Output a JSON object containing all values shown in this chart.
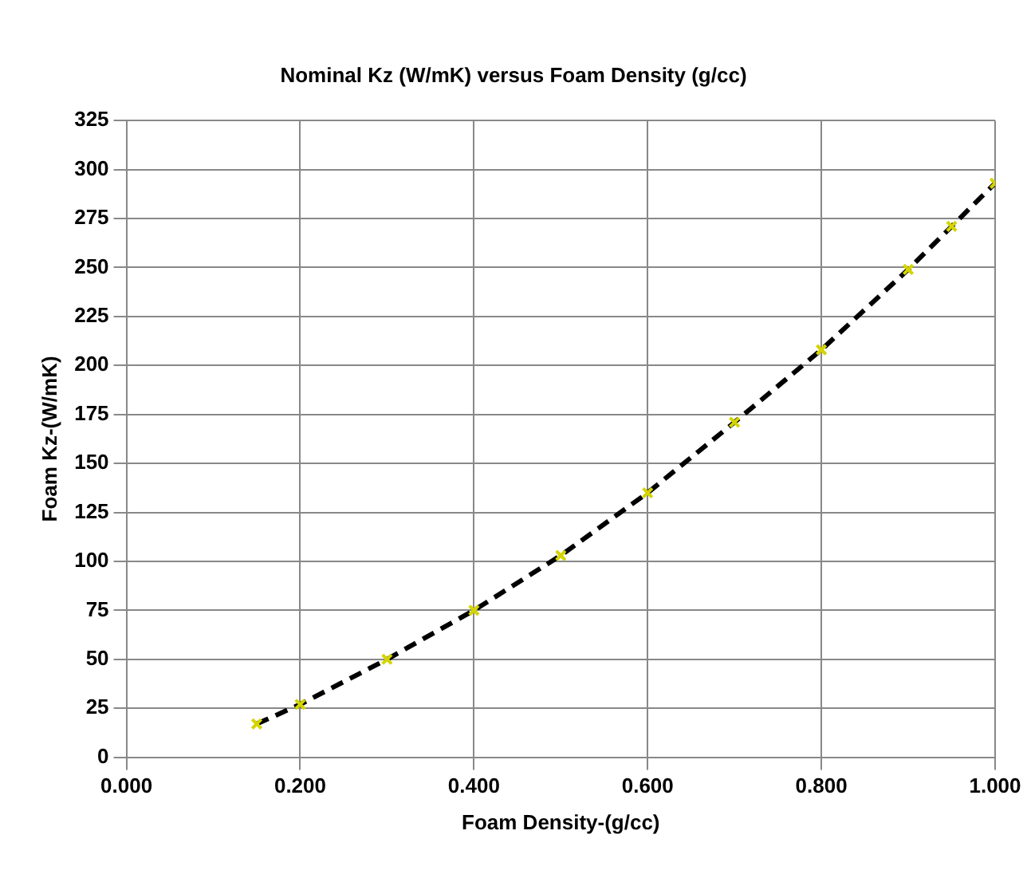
{
  "chart_data": {
    "type": "line",
    "title": "Nominal Kz (W/mK) versus Foam Density (g/cc)",
    "xlabel": "Foam Density-(g/cc)",
    "ylabel": "Foam Kz-(W/mK)",
    "x": [
      0.15,
      0.2,
      0.3,
      0.4,
      0.5,
      0.6,
      0.7,
      0.8,
      0.9,
      0.95,
      1.0
    ],
    "series": [
      {
        "color": "#000000",
        "values": [
          17,
          27,
          50,
          75,
          103,
          135,
          171,
          208,
          249,
          271,
          293
        ]
      }
    ],
    "xlim": [
      0,
      1
    ],
    "xticks": [
      {
        "value": 0,
        "label": "0.000"
      },
      {
        "value": 0.2,
        "label": "0.200"
      },
      {
        "value": 0.4,
        "label": "0.400"
      },
      {
        "value": 0.6,
        "label": "0.600"
      },
      {
        "value": 0.8,
        "label": "0.800"
      },
      {
        "value": 1,
        "label": "1.000"
      }
    ],
    "ylim": [
      0,
      325
    ],
    "yticks": [
      0,
      25,
      50,
      75,
      100,
      125,
      150,
      175,
      200,
      225,
      250,
      275,
      300,
      325
    ],
    "grid": true,
    "legend": false,
    "marker": "cross",
    "line_style": "dashed"
  }
}
